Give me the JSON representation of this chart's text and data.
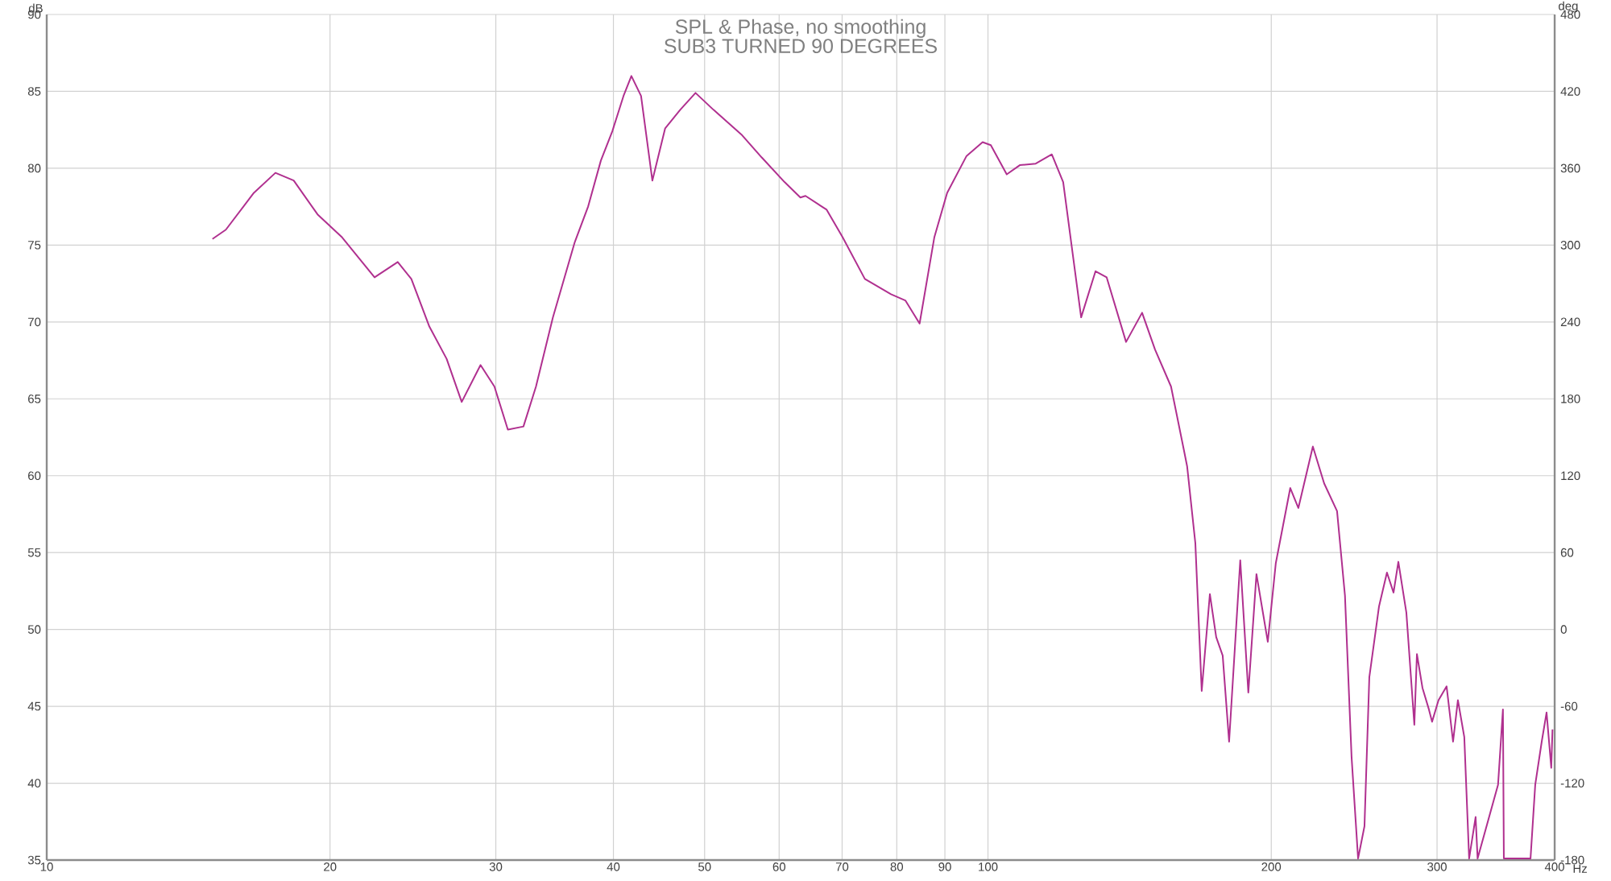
{
  "chart_data": {
    "type": "line",
    "title": "SPL & Phase, no smoothing",
    "subtitle": "SUB3 TURNED 90 DEGREES",
    "xlabel": "Hz",
    "ylabel": "dB",
    "y2label": "deg",
    "log": "x",
    "grid": true,
    "color": "#b0308f",
    "xlim": [
      10,
      400
    ],
    "xticks": [
      10,
      20,
      30,
      40,
      50,
      60,
      70,
      80,
      90,
      100,
      200,
      300,
      400
    ],
    "ylim": [
      35,
      90
    ],
    "yticks": [
      35,
      40,
      45,
      50,
      55,
      60,
      65,
      70,
      75,
      80,
      85,
      90
    ],
    "y2lim": [
      -180,
      480
    ],
    "y2ticks": [
      -180,
      -120,
      -60,
      0,
      60,
      120,
      180,
      240,
      300,
      360,
      420,
      480
    ],
    "x": [
      15.0,
      15.5,
      16.6,
      17.5,
      18.3,
      19.4,
      20.6,
      22.3,
      23.6,
      24.4,
      25.5,
      26.6,
      27.6,
      28.9,
      29.9,
      30.9,
      32.1,
      33.1,
      34.5,
      36.4,
      37.6,
      38.8,
      39.9,
      41.0,
      41.8,
      42.8,
      44.0,
      45.4,
      47.1,
      48.9,
      51.1,
      54.7,
      57.5,
      60.8,
      63.2,
      64.0,
      67.4,
      70.1,
      74.0,
      78.9,
      81.7,
      84.6,
      87.7,
      90.5,
      94.9,
      98.7,
      100.7,
      104.7,
      108.1,
      112.4,
      116.9,
      120.2,
      125.6,
      130.1,
      133.7,
      140.2,
      145.8,
      150.5,
      156.5,
      161.6,
      162.8,
      166.1,
      168.7,
      172.1,
      174.8,
      177.6,
      180.4,
      185.4,
      189.1,
      192.9,
      198.3,
      202.2,
      209.5,
      213.7,
      221.4,
      227.6,
      234.9,
      239.5,
      243.4,
      247.3,
      251.2,
      254.2,
      260.3,
      265.4,
      269.7,
      272.9,
      278.3,
      283.8,
      285.6,
      289.5,
      294.1,
      296.4,
      301.1,
      307.1,
      312.0,
      315.7,
      320.7,
      324.5,
      329.7,
      331.3,
      348.3,
      352.5,
      353.3,
      377.1,
      381.5,
      387.6,
      392.2,
      396.8,
      398.0
    ],
    "values": [
      75.4,
      76.0,
      78.4,
      79.7,
      79.2,
      77.0,
      75.5,
      72.9,
      73.9,
      72.8,
      69.7,
      67.6,
      64.8,
      67.2,
      65.8,
      63.0,
      63.2,
      65.8,
      70.3,
      75.2,
      77.5,
      80.5,
      82.4,
      84.7,
      86.0,
      84.7,
      79.2,
      82.6,
      83.8,
      84.9,
      83.8,
      82.2,
      80.7,
      79.1,
      78.1,
      78.2,
      77.3,
      75.5,
      72.8,
      71.8,
      71.4,
      69.9,
      75.5,
      78.4,
      80.8,
      81.7,
      81.5,
      79.6,
      80.2,
      80.3,
      80.9,
      79.1,
      70.3,
      73.3,
      72.9,
      68.7,
      70.6,
      68.2,
      65.8,
      61.6,
      60.6,
      55.6,
      46.0,
      52.3,
      49.5,
      48.3,
      42.7,
      54.5,
      45.9,
      53.6,
      49.2,
      54.3,
      59.2,
      57.9,
      61.9,
      59.5,
      57.7,
      52.2,
      41.7,
      35.1,
      37.2,
      46.9,
      51.5,
      53.7,
      52.4,
      54.4,
      51.1,
      43.8,
      48.4,
      46.2,
      44.8,
      44.0,
      45.4,
      46.3,
      42.7,
      45.4,
      43.0,
      35.1,
      37.8,
      35.1,
      39.9,
      44.8,
      35.1,
      35.1,
      39.9,
      42.7,
      44.6,
      41.0,
      43.5
    ]
  }
}
